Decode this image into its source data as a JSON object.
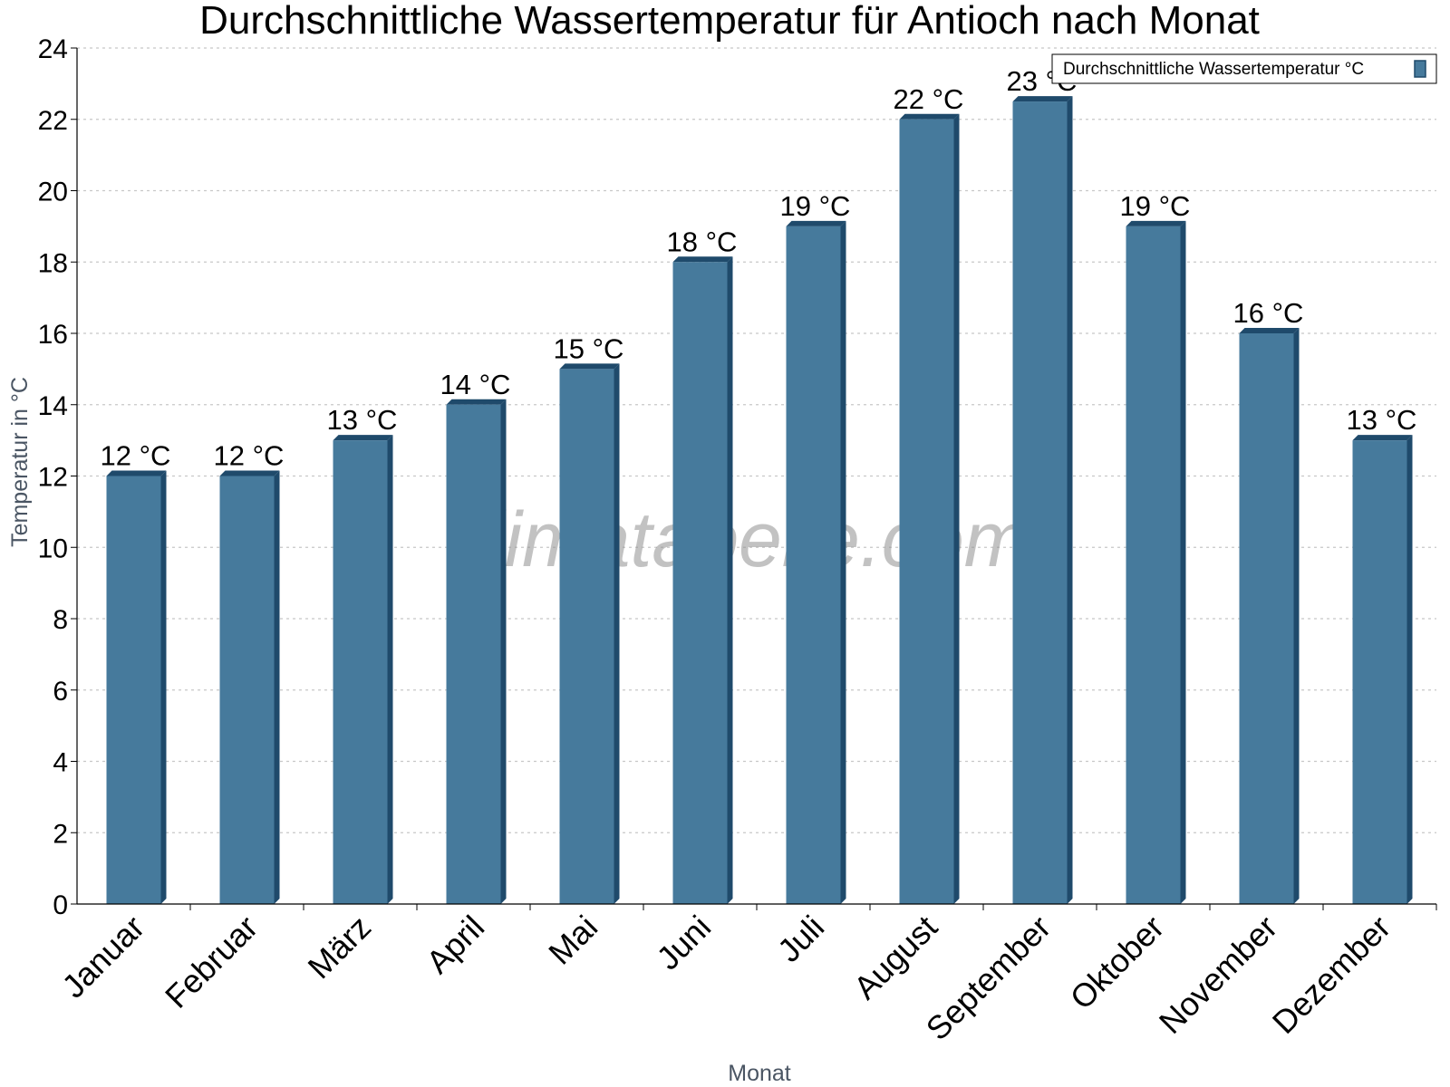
{
  "chart_data": {
    "type": "bar",
    "title": "Durchschnittliche Wassertemperatur für Antioch nach Monat",
    "xlabel": "Monat",
    "ylabel": "Temperatur in °C",
    "ylim": [
      0,
      24
    ],
    "yticks": [
      0,
      2,
      4,
      6,
      8,
      10,
      12,
      14,
      16,
      18,
      20,
      22,
      24
    ],
    "grid": true,
    "legend_position": "top-right",
    "categories": [
      "Januar",
      "Februar",
      "März",
      "April",
      "Mai",
      "Juni",
      "Juli",
      "August",
      "September",
      "Oktober",
      "November",
      "Dezember"
    ],
    "series": [
      {
        "name": "Durchschnittliche Wassertemperatur °C",
        "values": [
          12,
          12,
          13,
          14,
          15,
          18,
          19,
          22,
          22.5,
          19,
          16,
          13
        ],
        "labels": [
          "12 °C",
          "12 °C",
          "13 °C",
          "14 °C",
          "15 °C",
          "18 °C",
          "19 °C",
          "22 °C",
          "23 °C",
          "19 °C",
          "16 °C",
          "13 °C"
        ],
        "color": "#467a9c",
        "edge_color": "#1f4a6b"
      }
    ]
  },
  "watermark": "klimatabelle.com"
}
